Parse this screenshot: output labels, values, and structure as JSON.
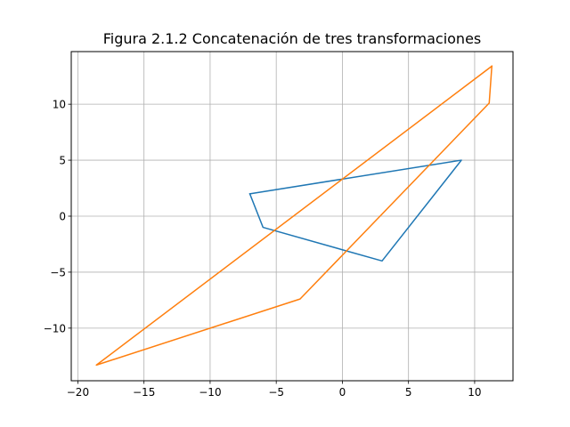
{
  "chart_data": {
    "type": "line",
    "title": "Figura 2.1.2 Concatenación de tres transformaciones",
    "xlabel": "",
    "ylabel": "",
    "xlim": [
      -20.5,
      12.9
    ],
    "ylim": [
      -14.7,
      14.7
    ],
    "grid": true,
    "x_ticks": [
      -20,
      -15,
      -10,
      -5,
      0,
      5,
      10
    ],
    "y_ticks": [
      -10,
      -5,
      0,
      5,
      10
    ],
    "series": [
      {
        "color": "#1f77b4",
        "x": [
          -7,
          -6,
          3,
          9,
          -7
        ],
        "y": [
          2,
          -1,
          -4,
          5,
          2
        ]
      },
      {
        "color": "#ff7f0e",
        "x": [
          11.3,
          -18.6,
          -3.2,
          11.1,
          11.3
        ],
        "y": [
          13.4,
          -13.3,
          -7.4,
          10.1,
          13.4
        ]
      }
    ]
  }
}
